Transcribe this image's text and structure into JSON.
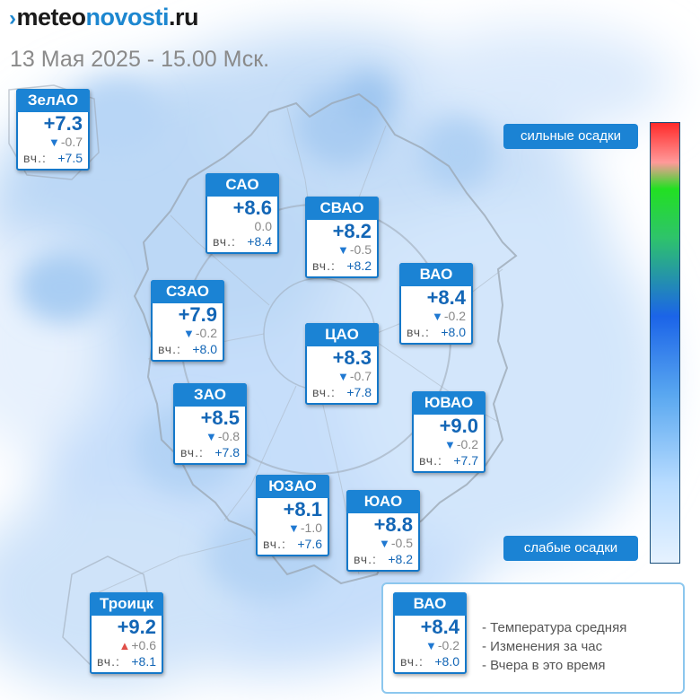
{
  "header": {
    "logo_prefix": "meteo",
    "logo_highlight": "novosti",
    "logo_suffix": ".ru",
    "date": "13 Мая 2025 - 15.00 Мск."
  },
  "districts": [
    {
      "name": "ЗелАО",
      "temp": "+7.3",
      "dir": "down",
      "change": "-0.7",
      "yest_label": "вч.:",
      "yest": "+7.5"
    },
    {
      "name": "САО",
      "temp": "+8.6",
      "dir": "none",
      "change": "0.0",
      "yest_label": "вч.:",
      "yest": "+8.4"
    },
    {
      "name": "СВАО",
      "temp": "+8.2",
      "dir": "down",
      "change": "-0.5",
      "yest_label": "вч.:",
      "yest": "+8.2"
    },
    {
      "name": "ВАО",
      "temp": "+8.4",
      "dir": "down",
      "change": "-0.2",
      "yest_label": "вч.:",
      "yest": "+8.0"
    },
    {
      "name": "СЗАО",
      "temp": "+7.9",
      "dir": "down",
      "change": "-0.2",
      "yest_label": "вч.:",
      "yest": "+8.0"
    },
    {
      "name": "ЦАО",
      "temp": "+8.3",
      "dir": "down",
      "change": "-0.7",
      "yest_label": "вч.:",
      "yest": "+7.8"
    },
    {
      "name": "ЗАО",
      "temp": "+8.5",
      "dir": "down",
      "change": "-0.8",
      "yest_label": "вч.:",
      "yest": "+7.8"
    },
    {
      "name": "ЮВАО",
      "temp": "+9.0",
      "dir": "down",
      "change": "-0.2",
      "yest_label": "вч.:",
      "yest": "+7.7"
    },
    {
      "name": "ЮЗАО",
      "temp": "+8.1",
      "dir": "down",
      "change": "-1.0",
      "yest_label": "вч.:",
      "yest": "+7.6"
    },
    {
      "name": "ЮАО",
      "temp": "+8.8",
      "dir": "down",
      "change": "-0.5",
      "yest_label": "вч.:",
      "yest": "+8.2"
    },
    {
      "name": "Троицк",
      "temp": "+9.2",
      "dir": "up",
      "change": "+0.6",
      "yest_label": "вч.:",
      "yest": "+8.1"
    }
  ],
  "precip_scale": {
    "top_label": "сильные осадки",
    "bottom_label": "слабые осадки"
  },
  "legend": {
    "card": {
      "name": "ВАО",
      "temp": "+8.4",
      "dir": "down",
      "change": "-0.2",
      "yest_label": "вч.:",
      "yest": "+8.0"
    },
    "lines": [
      "- Температура средняя",
      "- Изменения за час",
      "- Вчера в это время"
    ]
  },
  "colors": {
    "card_header": "#1b83d4",
    "temp_text": "#1366b6",
    "down_arrow": "#1f78d1",
    "up_arrow": "#e0504a",
    "legend_border": "#8cc7ee"
  }
}
